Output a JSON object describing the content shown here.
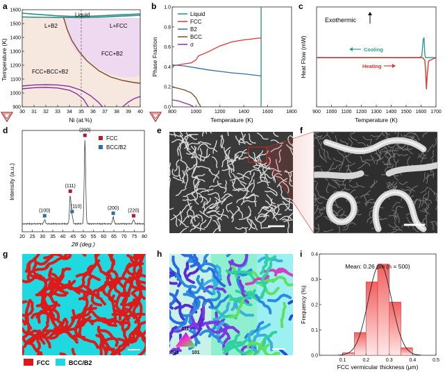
{
  "panels": {
    "a": {
      "letter": "a"
    },
    "b": {
      "letter": "b"
    },
    "c": {
      "letter": "c"
    },
    "d": {
      "letter": "d"
    },
    "e": {
      "letter": "e"
    },
    "f": {
      "letter": "f"
    },
    "g": {
      "letter": "g"
    },
    "h": {
      "letter": "h"
    },
    "i": {
      "letter": "i"
    }
  },
  "chart_data": [
    {
      "id": "a",
      "type": "line",
      "xlabel": "Ni (at.%)",
      "ylabel": "Temperature (K)",
      "xlim": [
        30,
        40
      ],
      "ylim": [
        900,
        1600
      ],
      "xticks": [
        30,
        31,
        32,
        33,
        34,
        35,
        36,
        37,
        38,
        39,
        40
      ],
      "yticks": [
        900,
        1000,
        1100,
        1200,
        1300,
        1400,
        1500,
        1600
      ],
      "annotations": [
        "Liquid",
        "L+B2",
        "L+FCC",
        "FCC+B2",
        "FCC+BCC+B2"
      ],
      "marker_line_x": 35,
      "colors": {
        "liquidus": "#2a8c82",
        "solvus": "#7a4a22",
        "sigma": "#8a2fa0",
        "fcc_region": "#efd9f0",
        "fcc_bcc_region": "#f6e8df"
      },
      "series": [
        {
          "values": [
            [
              30,
              1575
            ],
            [
              31,
              1568
            ],
            [
              32,
              1562
            ],
            [
              33,
              1556
            ],
            [
              34,
              1553
            ],
            [
              35,
              1552
            ],
            [
              36,
              1554
            ],
            [
              37,
              1558
            ],
            [
              38,
              1562
            ],
            [
              39,
              1566
            ],
            [
              40,
              1570
            ]
          ]
        },
        {
          "values": [
            [
              30,
              1548
            ],
            [
              31,
              1546
            ],
            [
              32,
              1545
            ],
            [
              33,
              1544
            ],
            [
              34,
              1544
            ],
            [
              35,
              1543
            ],
            [
              36,
              1545
            ],
            [
              37,
              1548
            ],
            [
              38,
              1552
            ],
            [
              39,
              1556
            ],
            [
              40,
              1560
            ]
          ]
        },
        {
          "values": [
            [
              33.5,
              1545
            ],
            [
              33.8,
              1460
            ],
            [
              34.2,
              1380
            ],
            [
              34.8,
              1300
            ],
            [
              35.5,
              1230
            ],
            [
              36.5,
              1160
            ],
            [
              37.5,
              1115
            ],
            [
              38.5,
              1090
            ],
            [
              39.5,
              1075
            ],
            [
              40,
              1070
            ]
          ]
        },
        {
          "values": [
            [
              30,
              1050
            ],
            [
              31,
              1058
            ],
            [
              32,
              1060
            ],
            [
              33,
              1058
            ],
            [
              34,
              1048
            ],
            [
              35,
              1020
            ],
            [
              35.8,
              980
            ],
            [
              36.5,
              930
            ],
            [
              36.8,
              900
            ]
          ]
        },
        {
          "values": [
            [
              30,
              1030
            ],
            [
              31,
              1038
            ],
            [
              32,
              1040
            ],
            [
              33,
              1036
            ],
            [
              34,
              1020
            ],
            [
              34.6,
              995
            ],
            [
              35.2,
              955
            ],
            [
              35.6,
              900
            ]
          ]
        },
        {
          "values": [
            [
              38.5,
              900
            ],
            [
              39,
              935
            ],
            [
              39.5,
              960
            ],
            [
              40,
              975
            ]
          ]
        }
      ]
    },
    {
      "id": "b",
      "type": "line",
      "xlabel": "Temperature (K)",
      "ylabel": "Phase Fraction",
      "xlim": [
        800,
        1800
      ],
      "ylim": [
        0,
        1.0
      ],
      "xticks": [
        800,
        1000,
        1200,
        1400,
        1600,
        1800
      ],
      "yticks": [
        0.0,
        0.2,
        0.4,
        0.6,
        0.8,
        1.0
      ],
      "legend": [
        "Liquid",
        "FCC",
        "B2",
        "BCC",
        "σ"
      ],
      "series": [
        {
          "name": "Liquid",
          "color": "#2a8c82",
          "points": [
            [
              1545,
              0
            ],
            [
              1545,
              1.0
            ]
          ]
        },
        {
          "name": "FCC",
          "color": "#e0342c",
          "points": [
            [
              800,
              0.41
            ],
            [
              900,
              0.43
            ],
            [
              960,
              0.44
            ],
            [
              1000,
              0.47
            ],
            [
              1020,
              0.51
            ],
            [
              1100,
              0.55
            ],
            [
              1200,
              0.61
            ],
            [
              1300,
              0.65
            ],
            [
              1400,
              0.67
            ],
            [
              1545,
              0.69
            ]
          ]
        },
        {
          "name": "B2",
          "color": "#2e6ea8",
          "points": [
            [
              800,
              0.42
            ],
            [
              900,
              0.41
            ],
            [
              1000,
              0.39
            ],
            [
              1100,
              0.37
            ],
            [
              1200,
              0.355
            ],
            [
              1300,
              0.34
            ],
            [
              1400,
              0.33
            ],
            [
              1545,
              0.31
            ]
          ]
        },
        {
          "name": "BCC",
          "color": "#7a4a22",
          "points": [
            [
              800,
              0.2
            ],
            [
              900,
              0.17
            ],
            [
              960,
              0.14
            ],
            [
              1000,
              0.09
            ],
            [
              1020,
              0.04
            ],
            [
              1040,
              0.0
            ]
          ]
        },
        {
          "name": "σ",
          "color": "#8a2fa0",
          "points": [
            [
              800,
              0.07
            ],
            [
              850,
              0.06
            ],
            [
              900,
              0.04
            ],
            [
              950,
              0.02
            ],
            [
              980,
              0.0
            ]
          ]
        }
      ]
    },
    {
      "id": "c",
      "type": "line",
      "xlabel": "Temperature (K)",
      "ylabel": "Heat Flow (mW)",
      "xlim": [
        900,
        1700
      ],
      "xticks": [
        900,
        1000,
        1100,
        1200,
        1300,
        1400,
        1500,
        1600,
        1700
      ],
      "annotations": [
        "Exothermic",
        "Cooling",
        "Heating"
      ],
      "series": [
        {
          "name": "Cooling",
          "color": "#2aa08c",
          "points": [
            [
              900,
              0
            ],
            [
              1590,
              0
            ],
            [
              1605,
              0.05
            ],
            [
              1615,
              0.55
            ],
            [
              1620,
              0.6
            ],
            [
              1625,
              0.1
            ],
            [
              1630,
              0
            ],
            [
              1700,
              0
            ]
          ]
        },
        {
          "name": "Heating",
          "color": "#e0342c",
          "points": [
            [
              900,
              0
            ],
            [
              1610,
              0
            ],
            [
              1625,
              -0.08
            ],
            [
              1632,
              -0.5
            ],
            [
              1636,
              -0.95
            ],
            [
              1642,
              -0.5
            ],
            [
              1650,
              -0.1
            ],
            [
              1700,
              0
            ]
          ]
        }
      ]
    },
    {
      "id": "d",
      "type": "line",
      "xlabel": "2θ (deg.)",
      "ylabel": "Intensity (a.u.)",
      "xlim": [
        20,
        80
      ],
      "xticks": [
        20,
        25,
        30,
        35,
        40,
        45,
        50,
        55,
        60,
        65,
        70,
        75,
        80
      ],
      "legend": [
        "FCC",
        "BCC/B2"
      ],
      "peaks": [
        {
          "two_theta": 31,
          "intensity": 0.05,
          "label": "(100)",
          "phase": "BCC/B2"
        },
        {
          "two_theta": 43.6,
          "intensity": 0.34,
          "label": "(111)",
          "phase": "FCC"
        },
        {
          "two_theta": 44.5,
          "intensity": 0.1,
          "label": "(110)",
          "phase": "BCC/B2"
        },
        {
          "two_theta": 50.8,
          "intensity": 1.0,
          "label": "(200)",
          "phase": "FCC"
        },
        {
          "two_theta": 64.7,
          "intensity": 0.08,
          "label": "(200)",
          "phase": "BCC/B2"
        },
        {
          "two_theta": 74.7,
          "intensity": 0.05,
          "label": "(220)",
          "phase": "FCC"
        }
      ],
      "colors": {
        "FCC": "#b01e2a",
        "BCC/B2": "#2e6ea8",
        "trace": "#222222"
      }
    },
    {
      "id": "i",
      "type": "bar",
      "title": "Mean: 0.26 μm (n = 500)",
      "xlabel": "FCC vermicular thickness (μm)",
      "ylabel": "Frequency (%)",
      "xlim": [
        0.0,
        0.5
      ],
      "ylim": [
        0.0,
        0.4
      ],
      "xticks": [
        0.1,
        0.2,
        0.3,
        0.4,
        0.5
      ],
      "yticks": [
        0.0,
        0.1,
        0.2,
        0.3,
        0.4
      ],
      "bin_edges": [
        0.1,
        0.15,
        0.2,
        0.25,
        0.3,
        0.35,
        0.4
      ],
      "values": [
        0.01,
        0.09,
        0.29,
        0.36,
        0.21,
        0.03
      ],
      "fit_mean": 0.26,
      "fit_sigma": 0.05
    }
  ],
  "labels": {
    "a_liquid": "Liquid",
    "a_lb2": "L+B2",
    "a_lfcc": "L+FCC",
    "a_fccb2": "FCC+B2",
    "a_fccbccb2": "FCC+BCC+B2",
    "a_xlabel": "Ni (at.%)",
    "a_ylabel": "Temperature (K)",
    "b_xlabel": "Temperature (K)",
    "b_ylabel": "Phase Fraction",
    "c_exo": "Exothermic",
    "c_cooling": "Cooling",
    "c_heating": "Heating",
    "c_xlabel": "Temperature (K)",
    "c_ylabel": "Heat Flow (mW)",
    "d_xlabel": "2θ (deg.)",
    "d_ylabel": "Intensity (a.u.)",
    "d_leg_fcc": "FCC",
    "d_leg_bcc": "BCC/B2",
    "g_fcc": "FCC",
    "g_bcc": "BCC/B2",
    "h_111": "111",
    "h_001": "001",
    "h_101": "101",
    "i_title": "Mean: 0.26 μm (n = 500)",
    "i_xlabel": "FCC vermicular thickness (μm)",
    "i_ylabel": "Frequency (%)"
  },
  "colors": {
    "panel_letter": "#111111",
    "fcc_red": "#dd1a1a",
    "bcc_cyan": "#1fd8e0",
    "sem_bg": "#3a3a3a",
    "logo": "#b22a2a"
  }
}
